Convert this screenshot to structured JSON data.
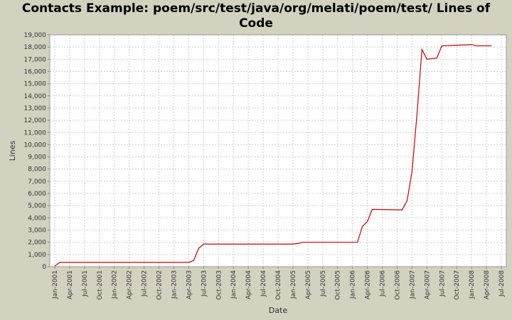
{
  "chart_data": {
    "type": "line",
    "title": "Contacts Example: poem/src/test/java/org/melati/poem/test/ Lines of Code",
    "x_label": "Date",
    "y_label": "Lines",
    "x": [
      "2001-01",
      "2001-02",
      "2003-04",
      "2003-05",
      "2003-06",
      "2003-07",
      "2005-01",
      "2005-02",
      "2005-03",
      "2006-02",
      "2006-03",
      "2006-04",
      "2006-05",
      "2006-11",
      "2006-12",
      "2007-01",
      "2007-02",
      "2007-03",
      "2007-04",
      "2007-06",
      "2007-07",
      "2008-01",
      "2008-02",
      "2008-05"
    ],
    "series": [
      {
        "name": "Lines",
        "color": "#cc0000",
        "values": [
          50,
          350,
          350,
          500,
          1500,
          1850,
          1850,
          1900,
          2000,
          2000,
          3300,
          3700,
          4700,
          4650,
          5400,
          7800,
          12500,
          17800,
          17000,
          17100,
          18100,
          18200,
          18100,
          18100
        ]
      }
    ],
    "xlim": [
      "2000-12",
      "2008-08"
    ],
    "xticks": [
      {
        "value": "2001-01",
        "label": "Jan-2001"
      },
      {
        "value": "2001-04",
        "label": "Apr-2001"
      },
      {
        "value": "2001-07",
        "label": "Jul-2001"
      },
      {
        "value": "2001-10",
        "label": "Oct-2001"
      },
      {
        "value": "2002-01",
        "label": "Jan-2002"
      },
      {
        "value": "2002-04",
        "label": "Apr-2002"
      },
      {
        "value": "2002-07",
        "label": "Jul-2002"
      },
      {
        "value": "2002-10",
        "label": "Oct-2002"
      },
      {
        "value": "2003-01",
        "label": "Jan-2003"
      },
      {
        "value": "2003-04",
        "label": "Apr-2003"
      },
      {
        "value": "2003-07",
        "label": "Jul-2003"
      },
      {
        "value": "2003-10",
        "label": "Oct-2003"
      },
      {
        "value": "2004-01",
        "label": "Jan-2004"
      },
      {
        "value": "2004-04",
        "label": "Apr-2004"
      },
      {
        "value": "2004-07",
        "label": "Jul-2004"
      },
      {
        "value": "2004-10",
        "label": "Oct-2004"
      },
      {
        "value": "2005-01",
        "label": "Jan-2005"
      },
      {
        "value": "2005-04",
        "label": "Apr-2005"
      },
      {
        "value": "2005-07",
        "label": "Jul-2005"
      },
      {
        "value": "2005-10",
        "label": "Oct-2005"
      },
      {
        "value": "2006-01",
        "label": "Jan-2006"
      },
      {
        "value": "2006-04",
        "label": "Apr-2006"
      },
      {
        "value": "2006-07",
        "label": "Jul-2006"
      },
      {
        "value": "2006-10",
        "label": "Oct-2006"
      },
      {
        "value": "2007-01",
        "label": "Jan-2007"
      },
      {
        "value": "2007-04",
        "label": "Apr-2007"
      },
      {
        "value": "2007-07",
        "label": "Jul-2007"
      },
      {
        "value": "2007-10",
        "label": "Oct-2007"
      },
      {
        "value": "2008-01",
        "label": "Jan-2008"
      },
      {
        "value": "2008-04",
        "label": "Apr-2008"
      },
      {
        "value": "2008-07",
        "label": "Jul-2008"
      }
    ],
    "ylim": [
      0,
      19000
    ],
    "yticks": [
      0,
      {
        "value": 1000,
        "label": "1,000"
      },
      {
        "value": 2000,
        "label": "2,000"
      },
      {
        "value": 3000,
        "label": "3,000"
      },
      {
        "value": 4000,
        "label": "4,000"
      },
      {
        "value": 5000,
        "label": "5,000"
      },
      {
        "value": 6000,
        "label": "6,000"
      },
      {
        "value": 7000,
        "label": "7,000"
      },
      {
        "value": 8000,
        "label": "8,000"
      },
      {
        "value": 9000,
        "label": "9,000"
      },
      {
        "value": 10000,
        "label": "10,000"
      },
      {
        "value": 11000,
        "label": "11,000"
      },
      {
        "value": 12000,
        "label": "12,000"
      },
      {
        "value": 13000,
        "label": "13,000"
      },
      {
        "value": 14000,
        "label": "14,000"
      },
      {
        "value": 15000,
        "label": "15,000"
      },
      {
        "value": 16000,
        "label": "16,000"
      },
      {
        "value": 17000,
        "label": "17,000"
      },
      {
        "value": 18000,
        "label": "18,000"
      },
      {
        "value": 19000,
        "label": "19,000"
      }
    ],
    "grid": true
  }
}
